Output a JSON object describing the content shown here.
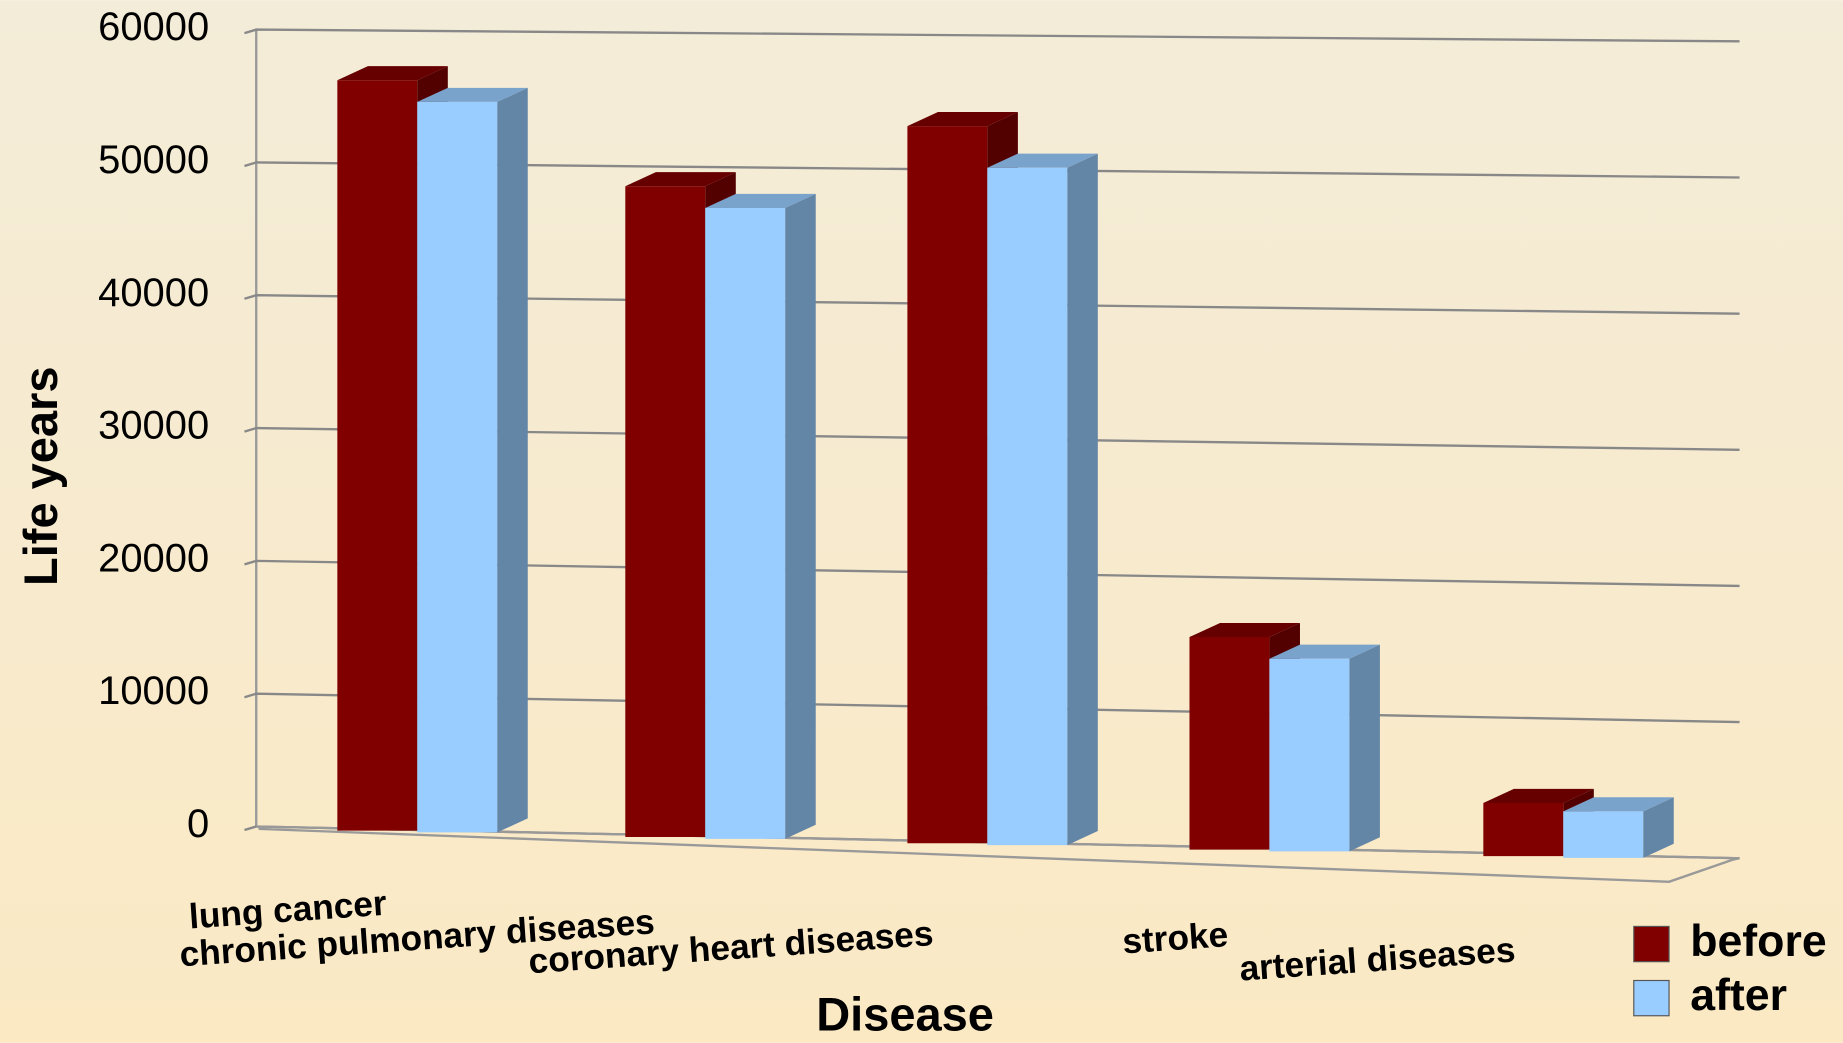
{
  "chart_data": {
    "type": "bar3d",
    "xlabel": "Disease",
    "ylabel": "Life years",
    "categories": [
      "lung cancer",
      "chronic pulmonary diseases",
      "coronary heart diseases",
      "stroke",
      "arterial diseases"
    ],
    "series": [
      {
        "name": "before",
        "color": "#800000",
        "values": [
          56500,
          49000,
          54000,
          16000,
          4000
        ]
      },
      {
        "name": "after",
        "color": "#99ccff",
        "values": [
          55000,
          47500,
          51000,
          14500,
          3500
        ]
      }
    ],
    "ylim": [
      0,
      60000
    ],
    "yticks": [
      0,
      10000,
      20000,
      30000,
      40000,
      50000,
      60000
    ],
    "grid": true,
    "legend": "lower right"
  }
}
